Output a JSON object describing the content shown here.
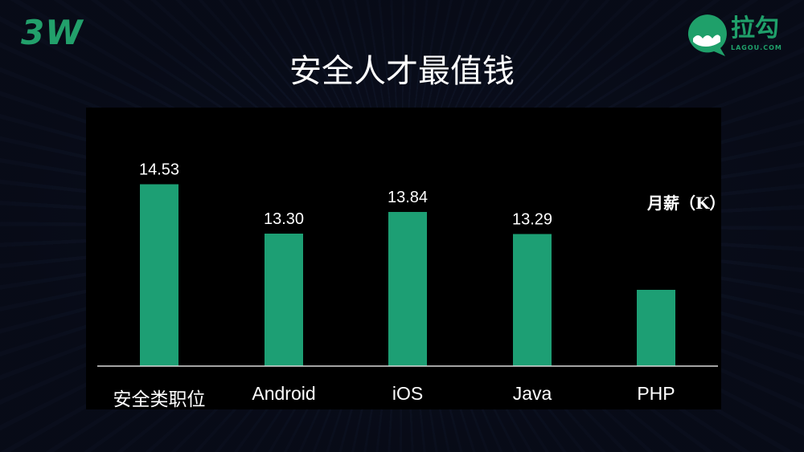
{
  "brand": {
    "badge": "3W",
    "logo_text": "拉勾",
    "logo_sub": "LAGOU.COM",
    "accent": "#1fa06a"
  },
  "title": "安全人才最值钱",
  "chart_data": {
    "type": "bar",
    "title": "安全人才最值钱",
    "unit_label": "月薪（K）",
    "categories": [
      "安全类职位",
      "Android",
      "iOS",
      "Java",
      "PHP"
    ],
    "values": [
      14.53,
      13.3,
      13.84,
      13.29,
      11.9
    ],
    "data_labels": [
      "14.53",
      "13.30",
      "13.84",
      "13.29",
      ""
    ],
    "ylim": [
      10,
      15
    ],
    "grid": false,
    "bar_color": "#1d9f74",
    "axis_color": "#d9d9d9"
  }
}
